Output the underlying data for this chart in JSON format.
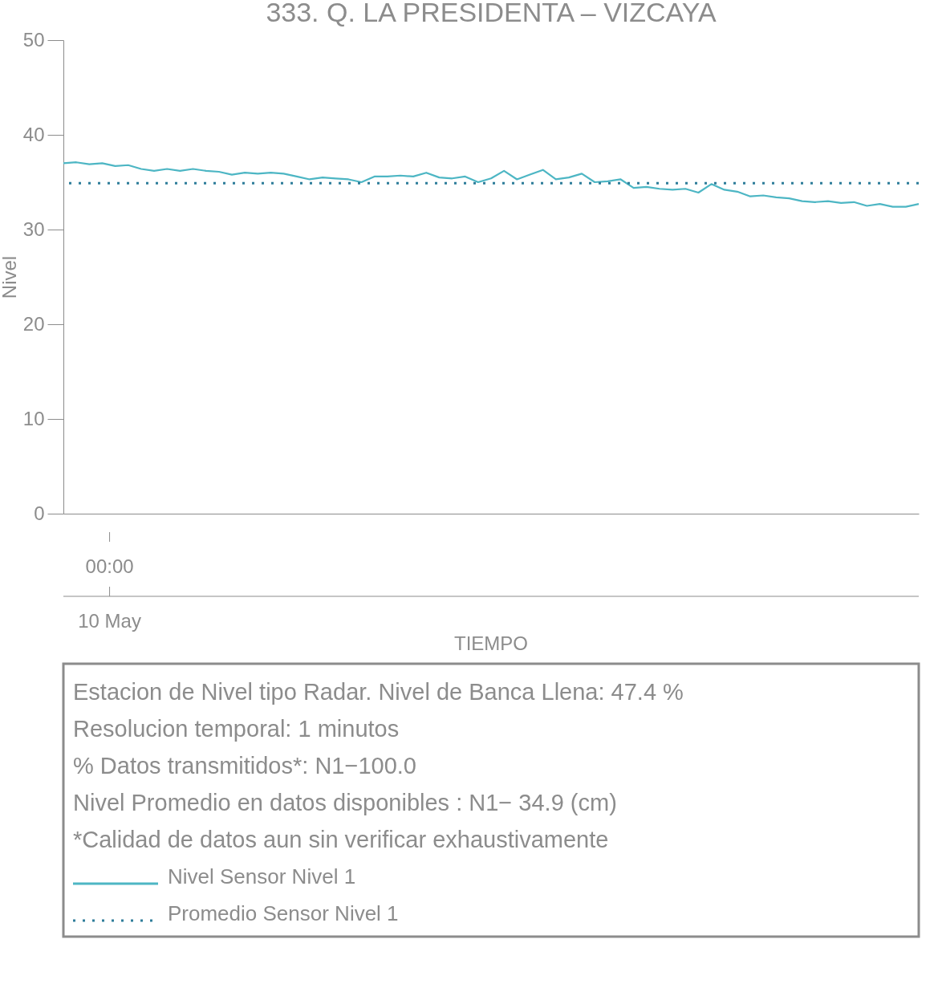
{
  "chart_data": {
    "type": "line",
    "title": "333. Q. LA PRESIDENTA – VIZCAYA",
    "ylabel": "Nivel",
    "categories": [
      null,
      null,
      null,
      null,
      null,
      null,
      null,
      null,
      null,
      null,
      null,
      null,
      null,
      null,
      null,
      null,
      null,
      null,
      null,
      null,
      null,
      null,
      null,
      null,
      null,
      null,
      null,
      null,
      null,
      null,
      null,
      null,
      null,
      null,
      null,
      null,
      null,
      null,
      null,
      null,
      null,
      null,
      null,
      null,
      null,
      null,
      null,
      null,
      null,
      null,
      null,
      null,
      null,
      null,
      null,
      null,
      null,
      null,
      null,
      null,
      null,
      null,
      null,
      null,
      null,
      null,
      null
    ],
    "series": [
      {
        "name": "Nivel Sensor Nivel 1",
        "color": "#4db6c4",
        "line_style": "solid",
        "values": [
          37.0,
          37.1,
          36.9,
          37.0,
          36.7,
          36.8,
          36.4,
          36.2,
          36.4,
          36.2,
          36.4,
          36.2,
          36.1,
          35.8,
          36.0,
          35.9,
          36.0,
          35.9,
          35.6,
          35.3,
          35.5,
          35.4,
          35.3,
          35.0,
          35.6,
          35.6,
          35.7,
          35.6,
          36.0,
          35.5,
          35.4,
          35.6,
          35.0,
          35.4,
          36.2,
          35.3,
          35.8,
          36.3,
          35.3,
          35.5,
          35.9,
          35.0,
          35.1,
          35.3,
          34.4,
          34.5,
          34.3,
          34.2,
          34.3,
          33.9,
          34.8,
          34.2,
          34.0,
          33.5,
          33.6,
          33.4,
          33.3,
          33.0,
          32.9,
          33.0,
          32.8,
          32.9,
          32.5,
          32.7,
          32.4,
          32.4,
          32.7
        ]
      }
    ],
    "ref_lines": [
      {
        "axis": "y",
        "value": 34.9,
        "label": "Promedio Sensor Nivel 1",
        "color": "#2e7d9a",
        "line_style": "dotted"
      }
    ],
    "ylim": [
      0,
      50
    ],
    "yticks": [
      0,
      10,
      20,
      30,
      40,
      50
    ],
    "grid": false,
    "legend": "bottom",
    "annotations": [
      "00:00",
      "10 May",
      "TIEMPO",
      "Estacion de Nivel tipo Radar. Nivel de Banca Llena: 47.4 %",
      "Resolucion temporal: 1 minutos",
      "% Datos transmitidos*: N1−100.0",
      "Nivel Promedio en datos disponibles : N1− 34.9 (cm)",
      "*Calidad de datos aun sin verificar exhaustivamente"
    ]
  }
}
